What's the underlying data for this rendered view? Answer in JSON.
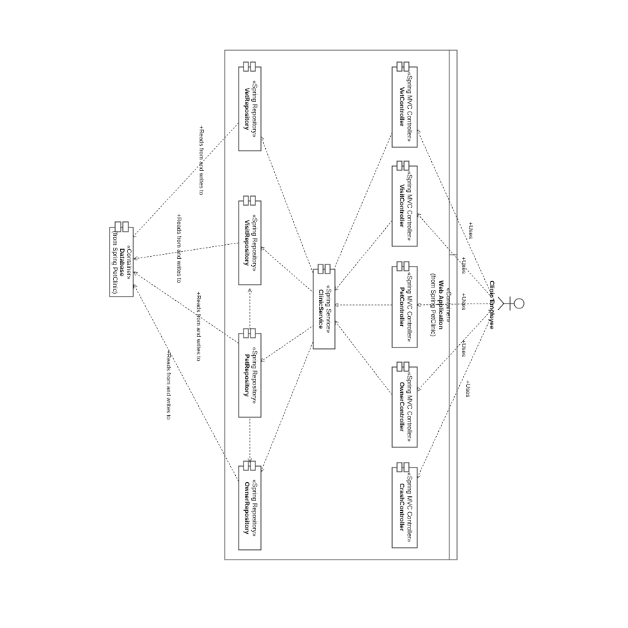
{
  "container": {
    "stereotype": "«Container»",
    "name": "Web Application",
    "origin": "(from Spring PetClinic)"
  },
  "database": {
    "stereotype": "«Container»",
    "name": "Database",
    "origin": "(from Spring PetClinic)"
  },
  "actor": {
    "name": "Clinic Employee"
  },
  "service": {
    "stereotype": "«Spring Service»",
    "name": "ClinicService"
  },
  "controllers": [
    {
      "stereotype": "«Spring MVC Controller»",
      "name": "VetController"
    },
    {
      "stereotype": "«Spring MVC Controller»",
      "name": "VisitController"
    },
    {
      "stereotype": "«Spring MVC Controller»",
      "name": "PetController"
    },
    {
      "stereotype": "«Spring MVC Controller»",
      "name": "OwnerController"
    },
    {
      "stereotype": "«Spring MVC Controller»",
      "name": "CrashController"
    }
  ],
  "repositories": [
    {
      "stereotype": "«Spring Repository»",
      "name": "VetRepository"
    },
    {
      "stereotype": "«Spring Repository»",
      "name": "VisitRepository"
    },
    {
      "stereotype": "«Spring Repository»",
      "name": "PetRepository"
    },
    {
      "stereotype": "«Spring Repository»",
      "name": "OwnerRepository"
    }
  ],
  "edge_labels": {
    "uses": "+Uses",
    "reads_writes": "+Reads from and writes to"
  }
}
